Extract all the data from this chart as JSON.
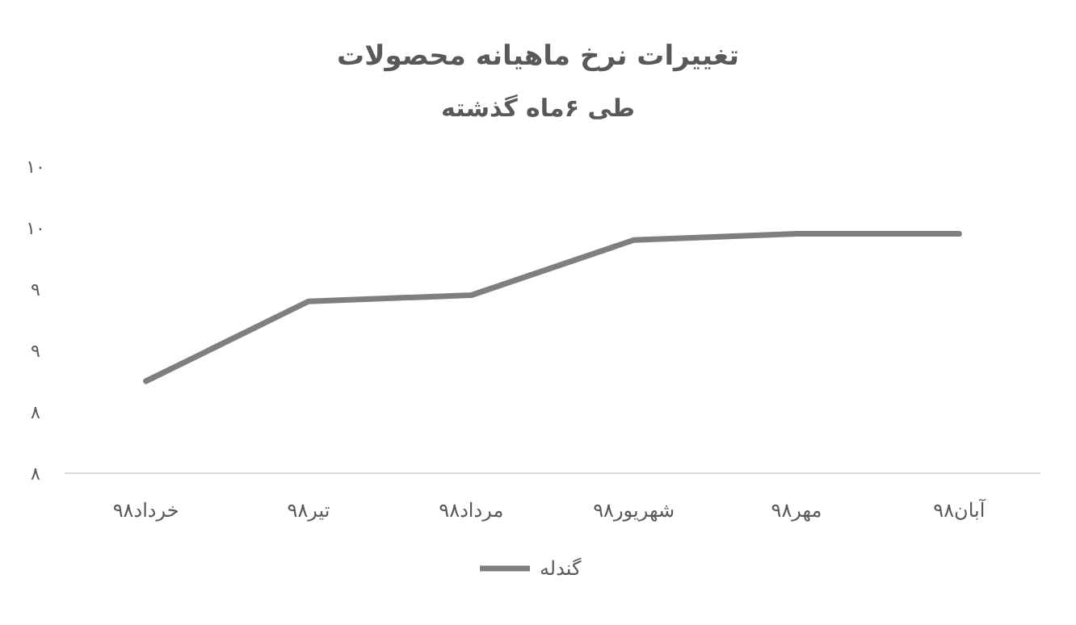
{
  "chart_data": {
    "type": "line",
    "title": "تغییرات نرخ ماهیانه محصولات",
    "subtitle": "طی ۶ماه گذشته",
    "categories": [
      "خرداد۹۸",
      "تیر۹۸",
      "مرداد۹۸",
      "شهریور۹۸",
      "مهر۹۸",
      "آبان۹۸"
    ],
    "series": [
      {
        "name": "گندله",
        "color": "#7f7f7f",
        "values": [
          8.75,
          9.4,
          9.45,
          9.9,
          9.95,
          9.95
        ]
      }
    ],
    "ylim": [
      8,
      10.5
    ],
    "yticks": [
      {
        "value": 8,
        "label": "۸"
      },
      {
        "value": 8.5,
        "label": "۸"
      },
      {
        "value": 9,
        "label": "۹"
      },
      {
        "value": 9.5,
        "label": "۹"
      },
      {
        "value": 10,
        "label": "۱۰"
      },
      {
        "value": 10.5,
        "label": "۱۰"
      }
    ],
    "legend": "bottom",
    "marker": "none",
    "line_style": "solid"
  }
}
